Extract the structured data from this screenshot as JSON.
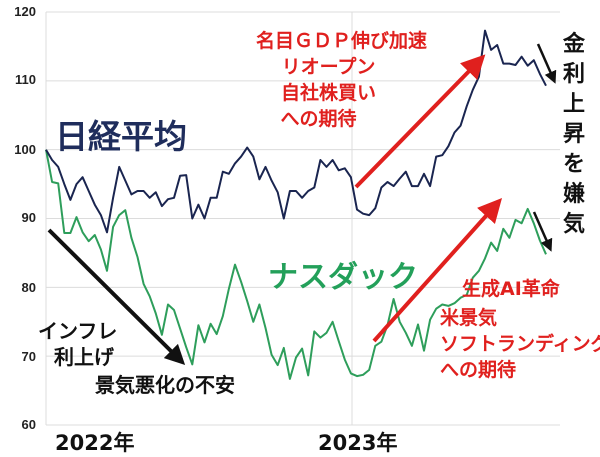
{
  "chart_data": {
    "type": "line",
    "title": "",
    "xlabel": "",
    "ylabel": "",
    "ylim": [
      60,
      120
    ],
    "yticks": [
      60,
      70,
      80,
      90,
      100,
      110,
      120
    ],
    "grid": true,
    "x_tick_labels": [
      "2022年",
      "2023年"
    ],
    "series": [
      {
        "name": "日経平均",
        "color": "#1a2550",
        "values": [
          100,
          98.5,
          97.5,
          95,
          92.7,
          95,
          96,
          94,
          92,
          90.5,
          88,
          93,
          97.5,
          95.5,
          93.5,
          94,
          94,
          93,
          93.8,
          91.8,
          92.8,
          93,
          96.2,
          96.3,
          90,
          92,
          90,
          93,
          93,
          96.8,
          96.5,
          98,
          99,
          100.3,
          99,
          95.7,
          97.5,
          95.5,
          93.8,
          90,
          94,
          94,
          93,
          94,
          94.5,
          98.5,
          97.5,
          98.5,
          97,
          97.3,
          96,
          91.3,
          90.7,
          90.5,
          91.5,
          94.5,
          95.3,
          94.7,
          95.8,
          96.8,
          94.7,
          94.7,
          96.5,
          94.7,
          99,
          99.2,
          100.5,
          102.5,
          103.5,
          106.3,
          108.7,
          110.6,
          117.3,
          114.5,
          115.2,
          112.5,
          112.5,
          112.3,
          113.5,
          112.2,
          113,
          111,
          109.3
        ]
      },
      {
        "name": "ナスダック",
        "color": "#2e9e5b",
        "values": [
          100,
          95.3,
          95.1,
          87.9,
          87.9,
          90.2,
          88,
          86.7,
          87.6,
          85.5,
          82.4,
          88.8,
          90.5,
          91.2,
          87.2,
          84.4,
          80.5,
          78.7,
          76.2,
          73.1,
          77.5,
          76.7,
          74,
          71.3,
          68.8,
          74.5,
          72,
          74.7,
          73.2,
          75.8,
          79.8,
          83.3,
          80.8,
          78,
          75,
          77.5,
          74.1,
          70.2,
          68.7,
          71.2,
          66.7,
          69.8,
          71.1,
          67.2,
          73.6,
          72.7,
          73.4,
          75,
          72.2,
          69.5,
          67.5,
          67.1,
          67.3,
          68,
          71.5,
          72.1,
          74.5,
          78.3,
          75,
          73.4,
          71.5,
          74.6,
          70.8,
          75.3,
          76.9,
          77.5,
          77.3,
          77.7,
          78.5,
          78.9,
          81.4,
          82.4,
          84.2,
          86.5,
          85.3,
          88.5,
          87.2,
          89.8,
          89.3,
          91.4,
          89.3,
          86.8,
          84.8
        ]
      }
    ],
    "annotations": [
      {
        "text": "日経平均",
        "color": "#1f2d5c"
      },
      {
        "text": "ナスダック",
        "color": "#23a05a"
      },
      {
        "text": "名目ＧＤＰ伸び加速 リオープン 自社株買い への期待",
        "color": "#e0201e"
      },
      {
        "text": "金利上昇を嫌気",
        "color": "#111111"
      },
      {
        "text": "インフレ 利上げ 景気悪化の不安",
        "color": "#111111"
      },
      {
        "text": "生成AI革命",
        "color": "#e0201e"
      },
      {
        "text": "米景気 ソフトランディング への期待",
        "color": "#e0201e"
      }
    ]
  },
  "labels": {
    "nikkei": "日経平均",
    "nasdaq": "ナスダック",
    "gdp_lines": [
      "名目ＧＤＰ伸び加速",
      "リオープン",
      "自社株買い",
      "への期待"
    ],
    "rate_vertical": [
      "金",
      "利",
      "上",
      "昇",
      "を",
      "嫌",
      "気"
    ],
    "inflation_lines": [
      "インフレ",
      "利上げ"
    ],
    "recession": "景気悪化の不安",
    "ai": "生成AI革命",
    "soft_lines": [
      "米景気",
      "ソフトランディング",
      "への期待"
    ],
    "x_2022": "2022年",
    "x_2023": "2023年",
    "y_ticks": [
      "120",
      "110",
      "100",
      "90",
      "80",
      "70",
      "60"
    ]
  }
}
